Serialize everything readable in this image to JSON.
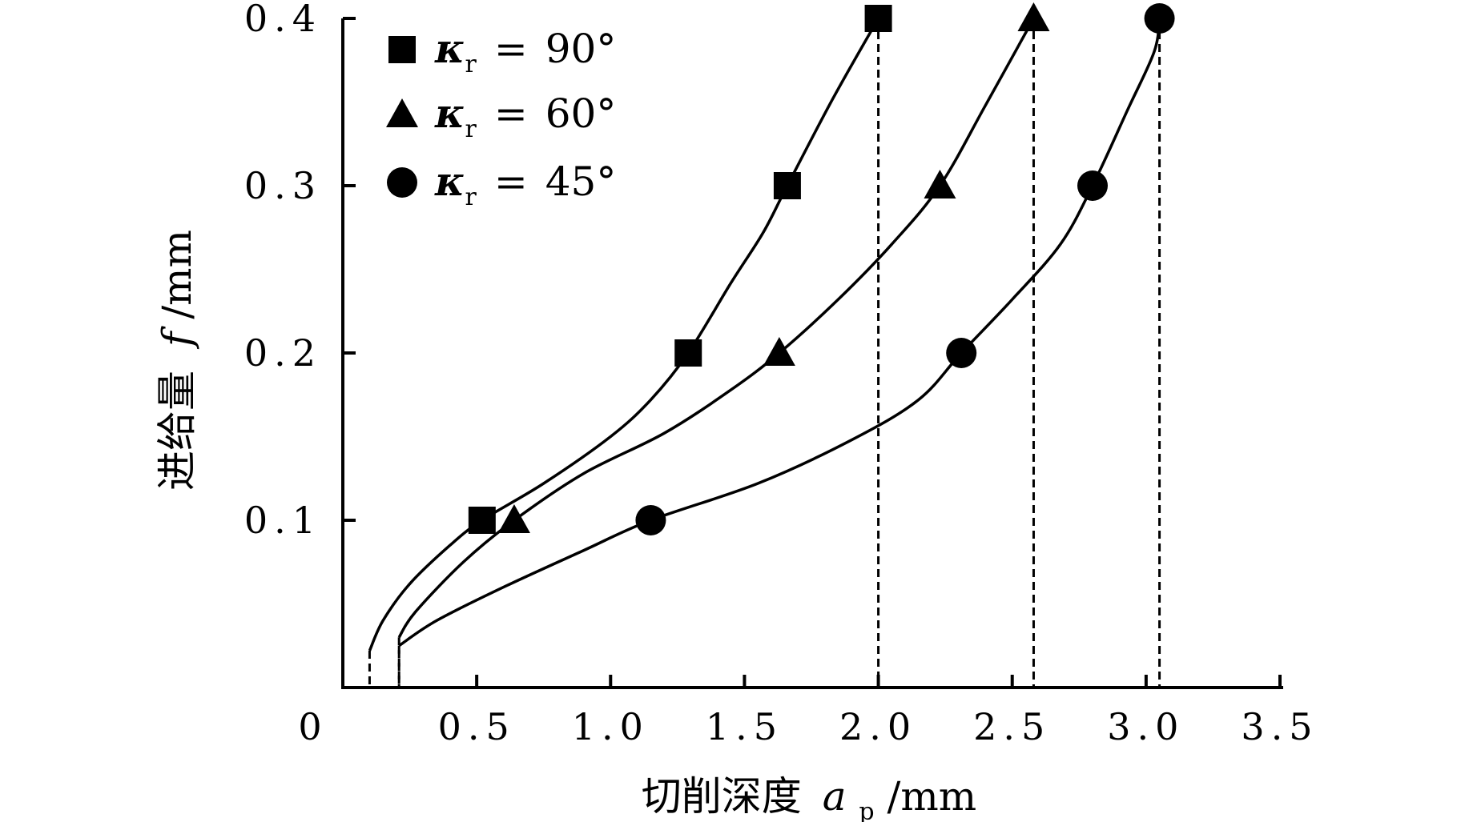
{
  "chart_data": {
    "type": "line",
    "x_axis": {
      "label_text": "切削深度",
      "label_var": "a",
      "label_sub": "p",
      "label_unit": "/mm",
      "min": 0,
      "max": 3.5,
      "ticks": [
        0.5,
        1.0,
        1.5,
        2.0,
        2.5,
        3.0,
        3.5
      ],
      "tick_labels": [
        "0.5",
        "1.0",
        "1.5",
        "2.0",
        "2.5",
        "3.0",
        "3.5"
      ],
      "origin_label": "0"
    },
    "y_axis": {
      "label_text": "进给量",
      "label_var": "f",
      "label_unit": "/mm",
      "min": 0,
      "max": 0.4,
      "ticks": [
        0.1,
        0.2,
        0.3,
        0.4
      ],
      "tick_labels": [
        "0.1",
        "0.2",
        "0.3",
        "0.4"
      ]
    },
    "legend": {
      "position": "top-left",
      "symbol": "κ",
      "symbol_sub": "r",
      "equals": "=",
      "unit": "°"
    },
    "grid": false,
    "series": [
      {
        "name": "90",
        "marker": "square",
        "points": [
          [
            0.52,
            0.1
          ],
          [
            1.29,
            0.2
          ],
          [
            1.66,
            0.3
          ],
          [
            2.0,
            0.4
          ]
        ],
        "curve": [
          [
            0.1,
            0.022
          ],
          [
            0.15,
            0.04
          ],
          [
            0.25,
            0.062
          ],
          [
            0.4,
            0.085
          ],
          [
            0.52,
            0.1
          ],
          [
            0.75,
            0.122
          ],
          [
            1.0,
            0.15
          ],
          [
            1.15,
            0.172
          ],
          [
            1.29,
            0.2
          ],
          [
            1.45,
            0.242
          ],
          [
            1.57,
            0.272
          ],
          [
            1.66,
            0.3
          ],
          [
            1.83,
            0.352
          ],
          [
            2.0,
            0.4
          ]
        ],
        "drop_lines": [
          0.1,
          2.0
        ]
      },
      {
        "name": "60",
        "marker": "triangle",
        "points": [
          [
            0.64,
            0.1
          ],
          [
            1.63,
            0.2
          ],
          [
            2.23,
            0.3
          ],
          [
            2.58,
            0.4
          ]
        ],
        "curve": [
          [
            0.21,
            0.03
          ],
          [
            0.27,
            0.045
          ],
          [
            0.45,
            0.075
          ],
          [
            0.64,
            0.1
          ],
          [
            0.9,
            0.128
          ],
          [
            1.2,
            0.152
          ],
          [
            1.45,
            0.178
          ],
          [
            1.63,
            0.2
          ],
          [
            1.85,
            0.232
          ],
          [
            2.05,
            0.265
          ],
          [
            2.23,
            0.3
          ],
          [
            2.4,
            0.348
          ],
          [
            2.58,
            0.4
          ]
        ],
        "drop_lines": [
          0.21,
          2.58
        ]
      },
      {
        "name": "45",
        "marker": "circle",
        "points": [
          [
            1.15,
            0.1
          ],
          [
            2.31,
            0.2
          ],
          [
            2.8,
            0.3
          ],
          [
            3.05,
            0.4
          ]
        ],
        "curve": [
          [
            0.21,
            0.025
          ],
          [
            0.35,
            0.04
          ],
          [
            0.6,
            0.06
          ],
          [
            0.9,
            0.082
          ],
          [
            1.15,
            0.1
          ],
          [
            1.55,
            0.122
          ],
          [
            1.9,
            0.148
          ],
          [
            2.15,
            0.172
          ],
          [
            2.31,
            0.2
          ],
          [
            2.5,
            0.232
          ],
          [
            2.68,
            0.265
          ],
          [
            2.8,
            0.3
          ],
          [
            2.93,
            0.345
          ],
          [
            3.03,
            0.38
          ],
          [
            3.05,
            0.4
          ]
        ],
        "drop_lines": [
          0.21,
          3.05
        ]
      }
    ]
  }
}
